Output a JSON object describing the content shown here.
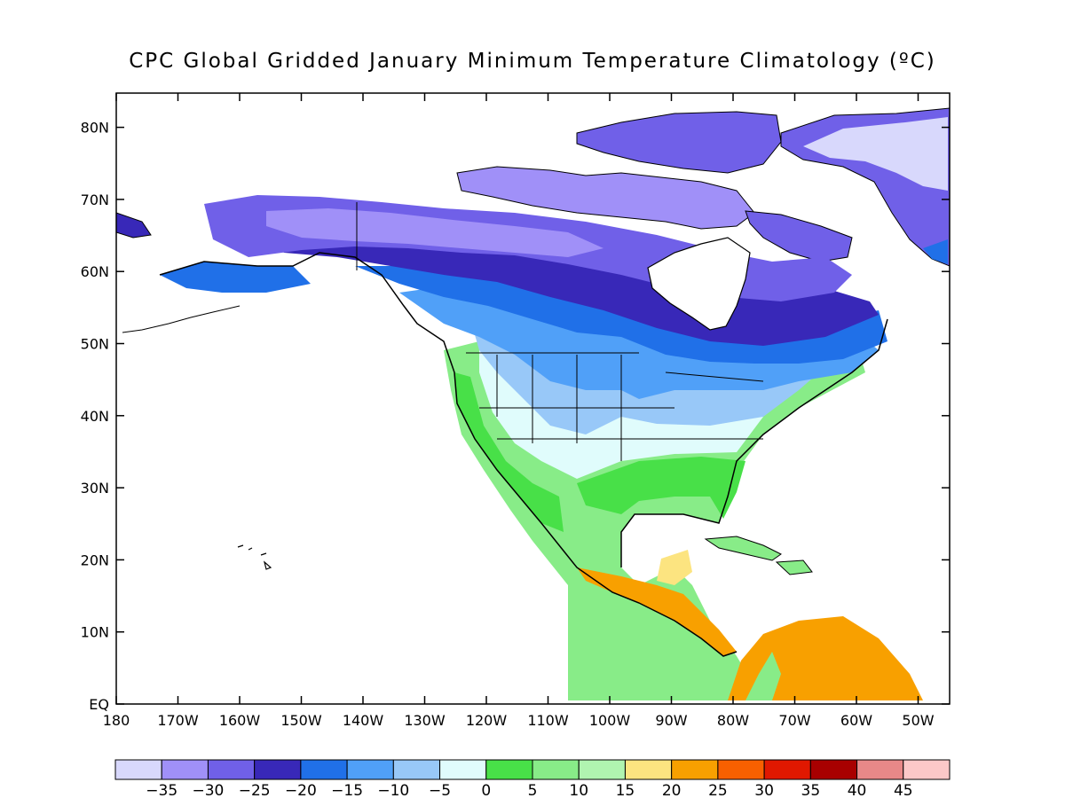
{
  "title": "CPC Global Gridded January Minimum Temperature Climatology (ºC)",
  "map": {
    "lat_ticks": [
      "EQ",
      "10N",
      "20N",
      "30N",
      "40N",
      "50N",
      "60N",
      "70N",
      "80N"
    ],
    "lon_ticks": [
      "180",
      "170W",
      "160W",
      "150W",
      "140W",
      "130W",
      "120W",
      "110W",
      "100W",
      "90W",
      "80W",
      "70W",
      "60W",
      "50W"
    ]
  },
  "colorbar": {
    "colors": [
      "#d8d8fc",
      "#a090f8",
      "#7060e8",
      "#3828b8",
      "#2070e8",
      "#50a0f8",
      "#98c8f8",
      "#e0fcfc",
      "#48e048",
      "#88ec88",
      "#b0f4b0",
      "#fce480",
      "#f8a000",
      "#f86000",
      "#e01800",
      "#a80000",
      "#e88888",
      "#fcc8c8"
    ],
    "labels": [
      "−35",
      "−30",
      "−25",
      "−20",
      "−15",
      "−10",
      "−5",
      "0",
      "5",
      "10",
      "15",
      "20",
      "25",
      "30",
      "35",
      "40",
      "45"
    ]
  }
}
